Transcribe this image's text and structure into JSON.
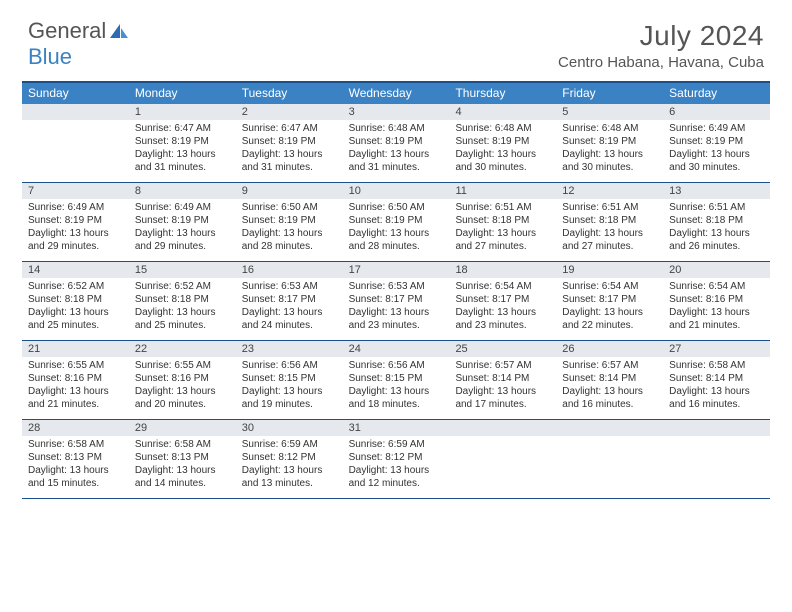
{
  "brand": {
    "word1": "General",
    "word2": "Blue"
  },
  "title": "July 2024",
  "location": "Centro Habana, Havana, Cuba",
  "colors": {
    "header_bar": "#3b82c4",
    "border": "#1b4f8a",
    "daynum_bg": "#e5e9ed",
    "text": "#333333",
    "muted_text": "#555555",
    "background": "#ffffff"
  },
  "weekdays": [
    "Sunday",
    "Monday",
    "Tuesday",
    "Wednesday",
    "Thursday",
    "Friday",
    "Saturday"
  ],
  "weeks": [
    [
      {
        "n": "",
        "sr": "",
        "ss": "",
        "dl": ""
      },
      {
        "n": "1",
        "sr": "Sunrise: 6:47 AM",
        "ss": "Sunset: 8:19 PM",
        "dl": "Daylight: 13 hours and 31 minutes."
      },
      {
        "n": "2",
        "sr": "Sunrise: 6:47 AM",
        "ss": "Sunset: 8:19 PM",
        "dl": "Daylight: 13 hours and 31 minutes."
      },
      {
        "n": "3",
        "sr": "Sunrise: 6:48 AM",
        "ss": "Sunset: 8:19 PM",
        "dl": "Daylight: 13 hours and 31 minutes."
      },
      {
        "n": "4",
        "sr": "Sunrise: 6:48 AM",
        "ss": "Sunset: 8:19 PM",
        "dl": "Daylight: 13 hours and 30 minutes."
      },
      {
        "n": "5",
        "sr": "Sunrise: 6:48 AM",
        "ss": "Sunset: 8:19 PM",
        "dl": "Daylight: 13 hours and 30 minutes."
      },
      {
        "n": "6",
        "sr": "Sunrise: 6:49 AM",
        "ss": "Sunset: 8:19 PM",
        "dl": "Daylight: 13 hours and 30 minutes."
      }
    ],
    [
      {
        "n": "7",
        "sr": "Sunrise: 6:49 AM",
        "ss": "Sunset: 8:19 PM",
        "dl": "Daylight: 13 hours and 29 minutes."
      },
      {
        "n": "8",
        "sr": "Sunrise: 6:49 AM",
        "ss": "Sunset: 8:19 PM",
        "dl": "Daylight: 13 hours and 29 minutes."
      },
      {
        "n": "9",
        "sr": "Sunrise: 6:50 AM",
        "ss": "Sunset: 8:19 PM",
        "dl": "Daylight: 13 hours and 28 minutes."
      },
      {
        "n": "10",
        "sr": "Sunrise: 6:50 AM",
        "ss": "Sunset: 8:19 PM",
        "dl": "Daylight: 13 hours and 28 minutes."
      },
      {
        "n": "11",
        "sr": "Sunrise: 6:51 AM",
        "ss": "Sunset: 8:18 PM",
        "dl": "Daylight: 13 hours and 27 minutes."
      },
      {
        "n": "12",
        "sr": "Sunrise: 6:51 AM",
        "ss": "Sunset: 8:18 PM",
        "dl": "Daylight: 13 hours and 27 minutes."
      },
      {
        "n": "13",
        "sr": "Sunrise: 6:51 AM",
        "ss": "Sunset: 8:18 PM",
        "dl": "Daylight: 13 hours and 26 minutes."
      }
    ],
    [
      {
        "n": "14",
        "sr": "Sunrise: 6:52 AM",
        "ss": "Sunset: 8:18 PM",
        "dl": "Daylight: 13 hours and 25 minutes."
      },
      {
        "n": "15",
        "sr": "Sunrise: 6:52 AM",
        "ss": "Sunset: 8:18 PM",
        "dl": "Daylight: 13 hours and 25 minutes."
      },
      {
        "n": "16",
        "sr": "Sunrise: 6:53 AM",
        "ss": "Sunset: 8:17 PM",
        "dl": "Daylight: 13 hours and 24 minutes."
      },
      {
        "n": "17",
        "sr": "Sunrise: 6:53 AM",
        "ss": "Sunset: 8:17 PM",
        "dl": "Daylight: 13 hours and 23 minutes."
      },
      {
        "n": "18",
        "sr": "Sunrise: 6:54 AM",
        "ss": "Sunset: 8:17 PM",
        "dl": "Daylight: 13 hours and 23 minutes."
      },
      {
        "n": "19",
        "sr": "Sunrise: 6:54 AM",
        "ss": "Sunset: 8:17 PM",
        "dl": "Daylight: 13 hours and 22 minutes."
      },
      {
        "n": "20",
        "sr": "Sunrise: 6:54 AM",
        "ss": "Sunset: 8:16 PM",
        "dl": "Daylight: 13 hours and 21 minutes."
      }
    ],
    [
      {
        "n": "21",
        "sr": "Sunrise: 6:55 AM",
        "ss": "Sunset: 8:16 PM",
        "dl": "Daylight: 13 hours and 21 minutes."
      },
      {
        "n": "22",
        "sr": "Sunrise: 6:55 AM",
        "ss": "Sunset: 8:16 PM",
        "dl": "Daylight: 13 hours and 20 minutes."
      },
      {
        "n": "23",
        "sr": "Sunrise: 6:56 AM",
        "ss": "Sunset: 8:15 PM",
        "dl": "Daylight: 13 hours and 19 minutes."
      },
      {
        "n": "24",
        "sr": "Sunrise: 6:56 AM",
        "ss": "Sunset: 8:15 PM",
        "dl": "Daylight: 13 hours and 18 minutes."
      },
      {
        "n": "25",
        "sr": "Sunrise: 6:57 AM",
        "ss": "Sunset: 8:14 PM",
        "dl": "Daylight: 13 hours and 17 minutes."
      },
      {
        "n": "26",
        "sr": "Sunrise: 6:57 AM",
        "ss": "Sunset: 8:14 PM",
        "dl": "Daylight: 13 hours and 16 minutes."
      },
      {
        "n": "27",
        "sr": "Sunrise: 6:58 AM",
        "ss": "Sunset: 8:14 PM",
        "dl": "Daylight: 13 hours and 16 minutes."
      }
    ],
    [
      {
        "n": "28",
        "sr": "Sunrise: 6:58 AM",
        "ss": "Sunset: 8:13 PM",
        "dl": "Daylight: 13 hours and 15 minutes."
      },
      {
        "n": "29",
        "sr": "Sunrise: 6:58 AM",
        "ss": "Sunset: 8:13 PM",
        "dl": "Daylight: 13 hours and 14 minutes."
      },
      {
        "n": "30",
        "sr": "Sunrise: 6:59 AM",
        "ss": "Sunset: 8:12 PM",
        "dl": "Daylight: 13 hours and 13 minutes."
      },
      {
        "n": "31",
        "sr": "Sunrise: 6:59 AM",
        "ss": "Sunset: 8:12 PM",
        "dl": "Daylight: 13 hours and 12 minutes."
      },
      {
        "n": "",
        "sr": "",
        "ss": "",
        "dl": ""
      },
      {
        "n": "",
        "sr": "",
        "ss": "",
        "dl": ""
      },
      {
        "n": "",
        "sr": "",
        "ss": "",
        "dl": ""
      }
    ]
  ]
}
